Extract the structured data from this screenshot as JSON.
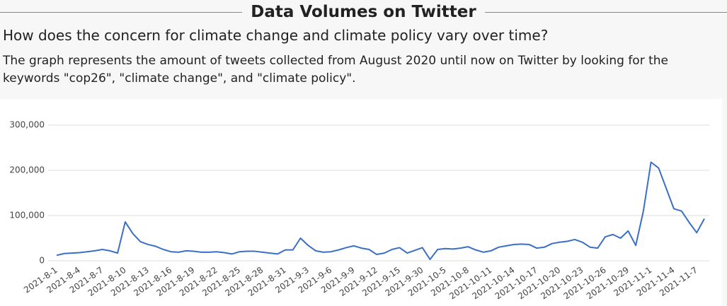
{
  "header": {
    "title": "Data Volumes on Twitter",
    "question": "How does the concern for climate change and climate policy vary over time?",
    "description": "The graph represents the amount of tweets collected from August 2020 until now on Twitter by looking for the keywords \"cop26\", \"climate change\", and \"climate policy\"."
  },
  "chart_data": {
    "type": "line",
    "color": "#3b6fc6",
    "grid": true,
    "categories": [
      "2021-8-1",
      null,
      null,
      "2021-8-4",
      null,
      null,
      "2021-8-7",
      null,
      null,
      "2021-8-10",
      null,
      null,
      "2021-8-13",
      null,
      null,
      "2021-8-16",
      null,
      null,
      "2021-8-19",
      null,
      null,
      "2021-8-22",
      null,
      null,
      "2021-8-25",
      null,
      null,
      "2021-8-28",
      null,
      null,
      "2021-8-31",
      null,
      null,
      "2021-9-3",
      null,
      null,
      "2021-9-6",
      null,
      null,
      "2021-9-9",
      null,
      null,
      "2021-9-12",
      null,
      null,
      "2021-9-15",
      null,
      null,
      "2021-9-30",
      null,
      null,
      "2021-10-5",
      null,
      null,
      "2021-10-8",
      null,
      null,
      "2021-10-11",
      null,
      null,
      "2021-10-14",
      null,
      null,
      "2021-10-17",
      null,
      null,
      "2021-10-20",
      null,
      null,
      "2021-10-23",
      null,
      null,
      "2021-10-26",
      null,
      null,
      "2021-10-29",
      null,
      null,
      "2021-11-1",
      null,
      null,
      "2021-11-4",
      null,
      null,
      "2021-11-7",
      null
    ],
    "values": [
      12000,
      16000,
      17000,
      18000,
      20000,
      22000,
      25000,
      22000,
      17000,
      86000,
      60000,
      42000,
      36000,
      32000,
      25000,
      20000,
      19000,
      22000,
      21000,
      19000,
      19000,
      20000,
      18000,
      15000,
      20000,
      21000,
      21000,
      19000,
      17000,
      15000,
      24000,
      24000,
      50000,
      34000,
      22000,
      19000,
      20000,
      24000,
      29000,
      33000,
      28000,
      25000,
      14000,
      17000,
      25000,
      29000,
      17000,
      23000,
      29000,
      3000,
      25000,
      27000,
      26000,
      28000,
      31000,
      24000,
      19000,
      22000,
      30000,
      33000,
      36000,
      37000,
      36000,
      28000,
      30000,
      38000,
      41000,
      43000,
      47000,
      41000,
      30000,
      28000,
      53000,
      58000,
      50000,
      66000,
      34000,
      110000,
      218000,
      205000,
      160000,
      115000,
      110000,
      85000,
      62000,
      93000
    ],
    "ylim": [
      0,
      300000
    ],
    "yticks": [
      0,
      {
        "value": 100000,
        "label": "100,000"
      },
      {
        "value": 200000,
        "label": "200,000"
      },
      {
        "value": 300000,
        "label": "300,000"
      }
    ]
  }
}
